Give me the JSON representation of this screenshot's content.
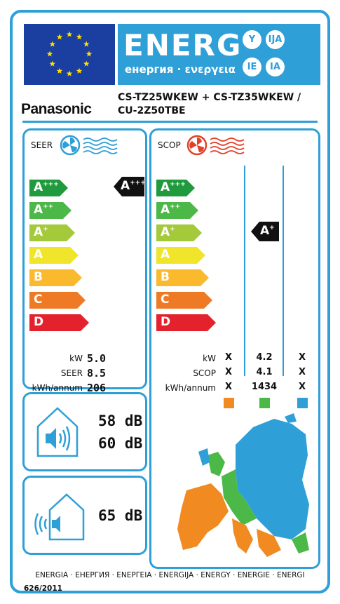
{
  "energy_banner": {
    "title": "ENERG",
    "subtitle": "енергия · ενεργεια",
    "lang_badges": [
      "Y",
      "IJA",
      "IE",
      "IA"
    ]
  },
  "supplier": {
    "name": "Panasonic"
  },
  "model": {
    "line1": "CS-TZ25WKEW + CS-TZ35WKEW /",
    "line2": "CU-2Z50TBE"
  },
  "icons": {
    "flag": "eu-flag-icon",
    "cooling": "cooling-fan-icon",
    "heating": "heating-fan-icon",
    "indoor_noise": "indoor-speaker-icon",
    "outdoor_noise": "outdoor-speaker-icon",
    "map": "europe-climate-map-icon"
  },
  "colors": {
    "frame": "#2f9fd8",
    "eu_blue": "#1b3fa0",
    "A+++": "#1f9a3c",
    "A++": "#4cb848",
    "A+": "#a4c93a",
    "A": "#f0e52b",
    "B": "#fbba2e",
    "C": "#ee7a25",
    "D": "#e3222d",
    "zone_warmer": "#f18a21",
    "zone_average": "#4cb848",
    "zone_colder": "#2f9fd8"
  },
  "seer": {
    "title": "SEER",
    "classes": [
      "A+++",
      "A++",
      "A+",
      "A",
      "B",
      "C",
      "D"
    ],
    "rating": "A+++",
    "rows": [
      {
        "label": "kW",
        "value": "5.0"
      },
      {
        "label": "SEER",
        "value": "8.5"
      },
      {
        "label": "kWh/annum",
        "value": "206"
      }
    ]
  },
  "scop": {
    "title": "SCOP",
    "classes": [
      "A+++",
      "A++",
      "A+",
      "A",
      "B",
      "C",
      "D"
    ],
    "rating": "A+",
    "rows": [
      {
        "label": "kW",
        "values": [
          "X",
          "4.2",
          "X"
        ]
      },
      {
        "label": "SCOP",
        "values": [
          "X",
          "4.1",
          "X"
        ]
      },
      {
        "label": "kWh/annum",
        "values": [
          "X",
          "1434",
          "X"
        ]
      }
    ]
  },
  "noise": {
    "indoor": [
      "58 dB",
      "60 dB"
    ],
    "outdoor": "65 dB"
  },
  "footer": {
    "languages": "ENERGIA · ЕНЕРГИЯ · ΕΝΕΡΓΕΙΑ · ENERGIJA · ENERGY · ENERGIE · ENERGI",
    "regulation": "626/2011"
  }
}
